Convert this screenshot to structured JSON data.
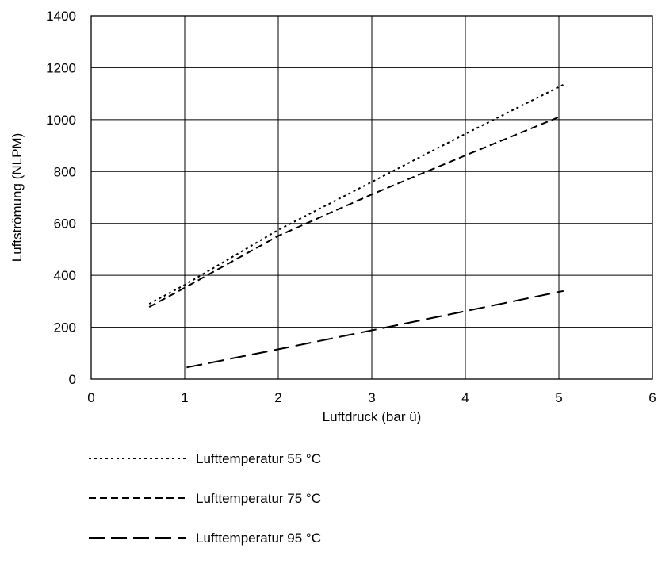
{
  "chart_data": {
    "type": "line",
    "xlabel": "Luftdruck (bar ü)",
    "ylabel": "Luftströmung (NLPM)",
    "xlim": [
      0,
      6
    ],
    "ylim": [
      0,
      1400
    ],
    "xticks": [
      0,
      1,
      2,
      3,
      4,
      5,
      6
    ],
    "yticks": [
      0,
      200,
      400,
      600,
      800,
      1000,
      1200,
      1400
    ],
    "grid": true,
    "legend_position": "bottom",
    "series": [
      {
        "name": "Lufttemperatur 55 °C",
        "style": "dotted",
        "color": "#000000",
        "points": [
          [
            0.62,
            290
          ],
          [
            1.0,
            363
          ],
          [
            2.0,
            575
          ],
          [
            3.0,
            760
          ],
          [
            4.0,
            945
          ],
          [
            5.05,
            1135
          ]
        ]
      },
      {
        "name": "Lufttemperatur 75 °C",
        "style": "dashed",
        "color": "#000000",
        "points": [
          [
            0.62,
            278
          ],
          [
            1.0,
            352
          ],
          [
            2.0,
            552
          ],
          [
            3.0,
            712
          ],
          [
            4.0,
            862
          ],
          [
            5.0,
            1010
          ]
        ]
      },
      {
        "name": "Lufttemperatur 95 °C",
        "style": "longdash",
        "color": "#000000",
        "points": [
          [
            1.02,
            45
          ],
          [
            2.0,
            115
          ],
          [
            3.0,
            188
          ],
          [
            4.0,
            262
          ],
          [
            5.05,
            340
          ]
        ]
      }
    ]
  }
}
